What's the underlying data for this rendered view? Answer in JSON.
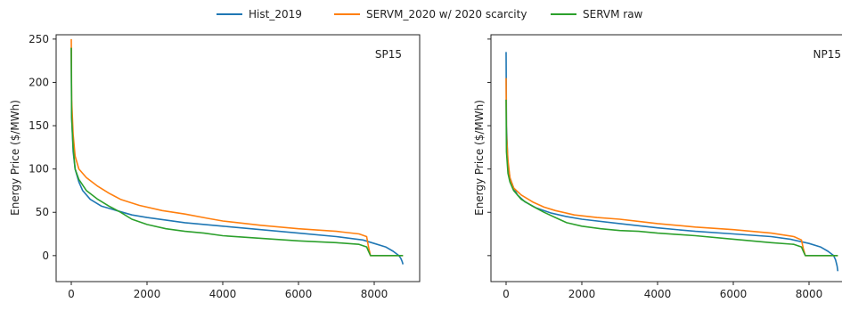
{
  "chart_data": [
    {
      "type": "line",
      "panel_label": "SP15",
      "ylabel": "Energy Price ($/MWh)",
      "xlabel": "",
      "xlim": [
        -400,
        9200
      ],
      "ylim": [
        -30,
        255
      ],
      "xticks": [
        0,
        2000,
        4000,
        6000,
        8000
      ],
      "yticks": [
        0,
        50,
        100,
        150,
        200,
        250
      ],
      "series": [
        {
          "name": "Hist_2019",
          "color": "#1f77b4",
          "x": [
            0,
            10,
            50,
            100,
            200,
            300,
            500,
            800,
            1200,
            1600,
            2000,
            3000,
            4000,
            5000,
            6000,
            7000,
            7700,
            8000,
            8300,
            8500,
            8650,
            8700,
            8740,
            8760
          ],
          "y": [
            240,
            160,
            120,
            100,
            85,
            75,
            65,
            57,
            52,
            47,
            44,
            38,
            34,
            30,
            26,
            22,
            18,
            14,
            10,
            5,
            0,
            -3,
            -7,
            -10
          ]
        },
        {
          "name": "SERVM_2020 w/ 2020 scarcity",
          "color": "#ff7f0e",
          "x": [
            0,
            10,
            50,
            100,
            200,
            400,
            700,
            1000,
            1300,
            1800,
            2400,
            3000,
            3600,
            4000,
            5000,
            6000,
            7000,
            7600,
            7800,
            7850,
            7900,
            8760
          ],
          "y": [
            250,
            180,
            140,
            115,
            100,
            90,
            80,
            72,
            65,
            58,
            52,
            48,
            43,
            40,
            35,
            31,
            28,
            25,
            22,
            10,
            0,
            0
          ]
        },
        {
          "name": "SERVM raw",
          "color": "#2ca02c",
          "x": [
            0,
            10,
            50,
            100,
            200,
            400,
            700,
            1000,
            1300,
            1600,
            2000,
            2500,
            3000,
            3500,
            4000,
            5000,
            6000,
            7000,
            7600,
            7800,
            7850,
            7900,
            8760
          ],
          "y": [
            240,
            160,
            125,
            100,
            88,
            75,
            65,
            57,
            50,
            42,
            36,
            31,
            28,
            26,
            23,
            20,
            17,
            15,
            13,
            10,
            5,
            0,
            0
          ]
        }
      ]
    },
    {
      "type": "line",
      "panel_label": "NP15",
      "ylabel": "Energy Price ($/MWh)",
      "xlabel": "",
      "xlim": [
        -400,
        9200
      ],
      "ylim": [
        -30,
        255
      ],
      "xticks": [
        0,
        2000,
        4000,
        6000,
        8000
      ],
      "yticks": [
        0,
        50,
        100,
        150,
        200,
        250
      ],
      "series": [
        {
          "name": "Hist_2019",
          "color": "#1f77b4",
          "x": [
            0,
            10,
            50,
            100,
            200,
            300,
            500,
            800,
            1200,
            1600,
            2000,
            3000,
            4000,
            5000,
            6000,
            7000,
            7500,
            8000,
            8300,
            8500,
            8650,
            8700,
            8740,
            8760
          ],
          "y": [
            235,
            150,
            105,
            90,
            78,
            70,
            62,
            55,
            49,
            45,
            42,
            37,
            32,
            28,
            25,
            22,
            19,
            14,
            10,
            5,
            0,
            -5,
            -12,
            -18
          ]
        },
        {
          "name": "SERVM_2020 w/ 2020 scarcity",
          "color": "#ff7f0e",
          "x": [
            0,
            10,
            50,
            100,
            200,
            400,
            700,
            1000,
            1300,
            1800,
            2400,
            3000,
            3600,
            4000,
            5000,
            6000,
            7000,
            7600,
            7800,
            7850,
            7900,
            8760
          ],
          "y": [
            205,
            140,
            110,
            90,
            78,
            70,
            62,
            56,
            52,
            47,
            44,
            42,
            39,
            37,
            33,
            30,
            26,
            22,
            18,
            8,
            0,
            0
          ]
        },
        {
          "name": "SERVM raw",
          "color": "#2ca02c",
          "x": [
            0,
            10,
            50,
            100,
            200,
            400,
            700,
            1000,
            1300,
            1600,
            2000,
            2500,
            3000,
            3500,
            4000,
            5000,
            6000,
            7000,
            7600,
            7800,
            7850,
            7900,
            8760
          ],
          "y": [
            180,
            120,
            95,
            85,
            75,
            65,
            57,
            50,
            44,
            38,
            34,
            31,
            29,
            28,
            26,
            23,
            19,
            15,
            13,
            10,
            5,
            0,
            0
          ]
        }
      ]
    }
  ],
  "legend": [
    {
      "label": "Hist_2019",
      "color": "#1f77b4"
    },
    {
      "label": "SERVM_2020 w/ 2020 scarcity",
      "color": "#ff7f0e"
    },
    {
      "label": "SERVM raw",
      "color": "#2ca02c"
    }
  ]
}
